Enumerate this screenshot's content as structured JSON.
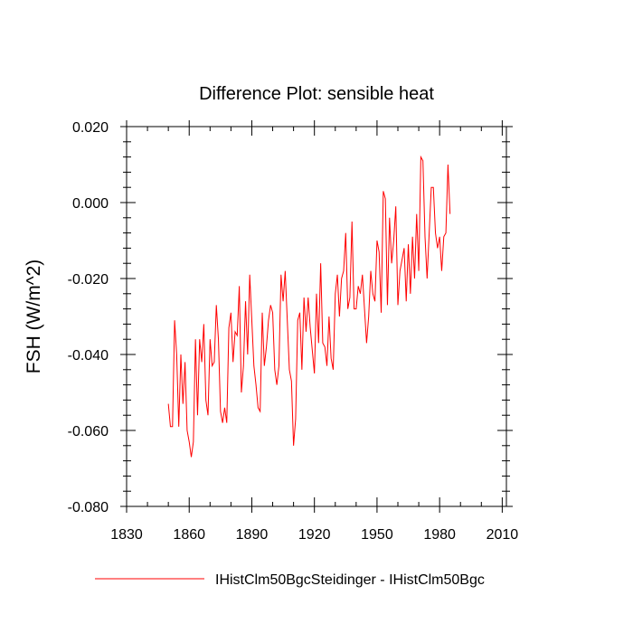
{
  "chart_data": {
    "type": "line",
    "title": "Difference Plot: sensible heat",
    "xlabel": "",
    "ylabel": "FSH  (W/m^2)",
    "xlim": [
      1830,
      2012
    ],
    "ylim": [
      -0.08,
      0.02
    ],
    "xticks": [
      1830,
      1860,
      1890,
      1920,
      1950,
      1980,
      2010
    ],
    "xtick_labels": [
      "1830",
      "1860",
      "1890",
      "1920",
      "1950",
      "1980",
      "2010"
    ],
    "yticks": [
      0.02,
      0.0,
      -0.02,
      -0.04,
      -0.06,
      -0.08
    ],
    "ytick_labels": [
      "0.020",
      "0.000",
      "-0.020",
      "-0.040",
      "-0.060",
      "-0.080"
    ],
    "grid": false,
    "legend_position": "bottom",
    "series": [
      {
        "name": "IHistClm50BgcSteidinger - IHistClm50Bgc",
        "color": "#ff0000",
        "x_start": 1850,
        "x_step": 1,
        "values": [
          -0.053,
          -0.059,
          -0.059,
          -0.031,
          -0.04,
          -0.059,
          -0.04,
          -0.053,
          -0.042,
          -0.06,
          -0.063,
          -0.067,
          -0.063,
          -0.036,
          -0.056,
          -0.036,
          -0.042,
          -0.032,
          -0.052,
          -0.056,
          -0.036,
          -0.043,
          -0.042,
          -0.027,
          -0.036,
          -0.055,
          -0.058,
          -0.054,
          -0.058,
          -0.033,
          -0.029,
          -0.042,
          -0.034,
          -0.035,
          -0.022,
          -0.05,
          -0.043,
          -0.026,
          -0.04,
          -0.019,
          -0.031,
          -0.043,
          -0.048,
          -0.054,
          -0.055,
          -0.029,
          -0.043,
          -0.038,
          -0.031,
          -0.027,
          -0.029,
          -0.044,
          -0.048,
          -0.043,
          -0.019,
          -0.026,
          -0.018,
          -0.031,
          -0.044,
          -0.047,
          -0.064,
          -0.057,
          -0.031,
          -0.029,
          -0.044,
          -0.025,
          -0.034,
          -0.025,
          -0.033,
          -0.039,
          -0.045,
          -0.024,
          -0.037,
          -0.016,
          -0.037,
          -0.038,
          -0.043,
          -0.03,
          -0.041,
          -0.044,
          -0.024,
          -0.019,
          -0.03,
          -0.02,
          -0.018,
          -0.008,
          -0.028,
          -0.025,
          -0.005,
          -0.028,
          -0.028,
          -0.022,
          -0.024,
          -0.019,
          -0.028,
          -0.037,
          -0.03,
          -0.018,
          -0.024,
          -0.026,
          -0.01,
          -0.013,
          -0.029,
          0.003,
          0.001,
          -0.027,
          -0.004,
          -0.016,
          -0.01,
          -0.001,
          -0.027,
          -0.018,
          -0.015,
          -0.012,
          -0.026,
          -0.011,
          -0.024,
          -0.009,
          -0.02,
          -0.003,
          -0.018,
          0.012,
          0.011,
          -0.009,
          -0.02,
          -0.008,
          0.004,
          0.004,
          -0.008,
          -0.012,
          -0.009,
          -0.018,
          -0.009,
          -0.008,
          0.01,
          -0.003
        ]
      }
    ]
  },
  "legend": {
    "entries": [
      "IHistClm50BgcSteidinger - IHistClm50Bgc"
    ]
  }
}
